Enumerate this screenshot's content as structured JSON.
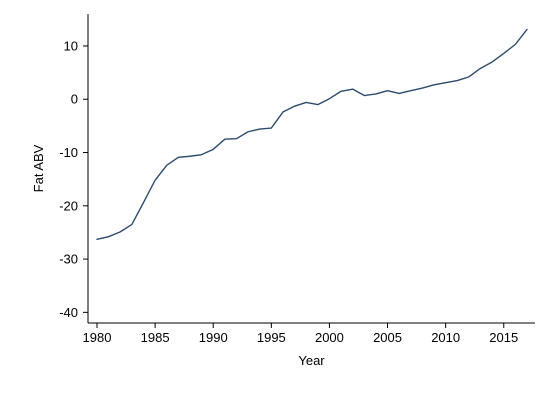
{
  "chart_data": {
    "type": "line",
    "title": "",
    "xlabel": "Year",
    "ylabel": "Fat ABV",
    "xlim": [
      1980,
      2017
    ],
    "ylim": [
      -42,
      14.5
    ],
    "xticks": [
      1980,
      1985,
      1990,
      1995,
      2000,
      2005,
      2010,
      2015
    ],
    "yticks": [
      10,
      0,
      -10,
      -20,
      -30,
      -40
    ],
    "grid": false,
    "legend": "none",
    "colors": {
      "line": "#2d4b6e",
      "axis": "#000000",
      "text": "#000000"
    },
    "series": [
      {
        "x": [
          1980,
          1981,
          1982,
          1983,
          1984,
          1985,
          1986,
          1987,
          1988,
          1989,
          1990,
          1991,
          1992,
          1993,
          1994,
          1995,
          1996,
          1997,
          1998,
          1999,
          2000,
          2001,
          2002,
          2003,
          2004,
          2005,
          2006,
          2007,
          2008,
          2009,
          2010,
          2011,
          2012,
          2013,
          2014,
          2015,
          2016,
          2017
        ],
        "values": [
          -26.3,
          -25.8,
          -24.9,
          -23.5,
          -19.4,
          -15.2,
          -12.4,
          -10.9,
          -10.7,
          -10.4,
          -9.4,
          -7.5,
          -7.4,
          -6.1,
          -5.6,
          -5.4,
          -2.4,
          -1.3,
          -0.6,
          -1.0,
          0.1,
          1.5,
          1.9,
          0.7,
          1.0,
          1.6,
          1.1,
          1.6,
          2.1,
          2.7,
          3.1,
          3.5,
          4.2,
          5.8,
          7.0,
          8.6,
          10.3,
          13.1
        ]
      }
    ]
  }
}
